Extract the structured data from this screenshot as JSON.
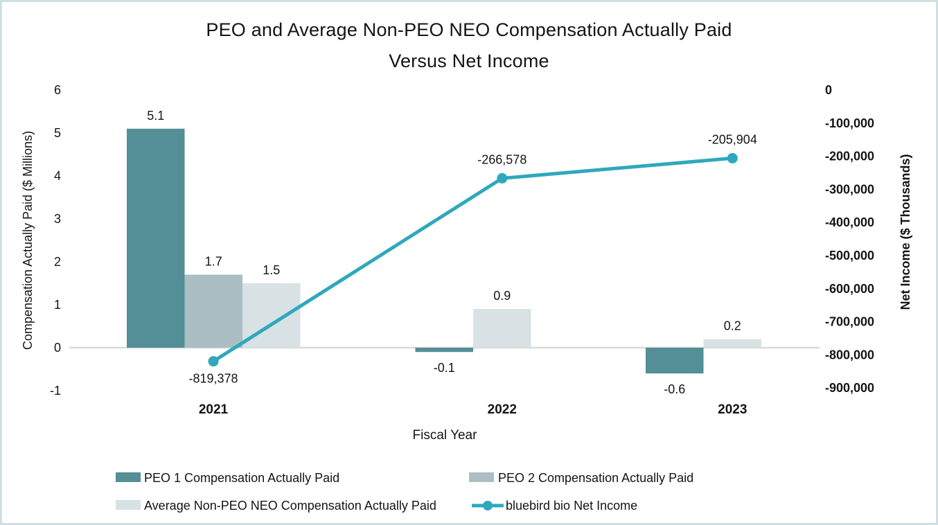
{
  "page": {
    "background": "#ffffff",
    "border_color": "#cfdfe4",
    "text_color": "#141414",
    "gridline_color": "#d9d9d9"
  },
  "chart_data": {
    "type": "bar",
    "subtype": "clustered-bar-with-line-dual-axis",
    "title": "PEO and Average Non-PEO NEO Compensation Actually Paid Versus Net Income",
    "title_lines": [
      "PEO and Average Non-PEO NEO Compensation Actually Paid",
      "Versus Net Income"
    ],
    "categories": [
      "2021",
      "2022",
      "2023"
    ],
    "xlabel": "Fiscal Year",
    "left_axis": {
      "label": "Compensation Actually Paid ($ Millions)",
      "min": -1,
      "max": 6,
      "ticks": [
        "6",
        "5",
        "4",
        "3",
        "2",
        "1",
        "0",
        "-1"
      ]
    },
    "right_axis": {
      "label": "Net Income ($ Thousands)",
      "min": -900000,
      "max": 0,
      "color": "#2aa3b8",
      "ticks": [
        "0",
        "-100,000",
        "-200,000",
        "-300,000",
        "-400,000",
        "-500,000",
        "-600,000",
        "-700,000",
        "-800,000",
        "-900,000"
      ]
    },
    "bar_series": [
      {
        "name": "PEO 1 Compensation Actually Paid",
        "color": "#548e96",
        "values": [
          5.1,
          -0.1,
          -0.6
        ],
        "labels": [
          "5.1",
          "-0.1",
          "-0.6"
        ]
      },
      {
        "name": "PEO 2 Compensation Actually Paid",
        "color": "#aabec4",
        "values": [
          1.7,
          null,
          null
        ],
        "labels": [
          "1.7",
          null,
          null
        ]
      },
      {
        "name": "Average Non-PEO NEO Compensation Actually Paid",
        "color": "#d8e1e3",
        "values": [
          1.5,
          0.9,
          0.2
        ],
        "labels": [
          "1.5",
          "0.9",
          "0.2"
        ]
      }
    ],
    "line_series": {
      "name": "bluebird bio Net Income",
      "color": "#2fa8bd",
      "label_color": "#41abbe",
      "values": [
        -819378,
        -266578,
        -205904
      ],
      "labels": [
        "-819,378",
        "-266,578",
        "-205,904"
      ],
      "label_placement": [
        "below",
        "above",
        "above"
      ]
    },
    "gridlines": "zero-line-only",
    "legend_position": "bottom-two-columns"
  }
}
